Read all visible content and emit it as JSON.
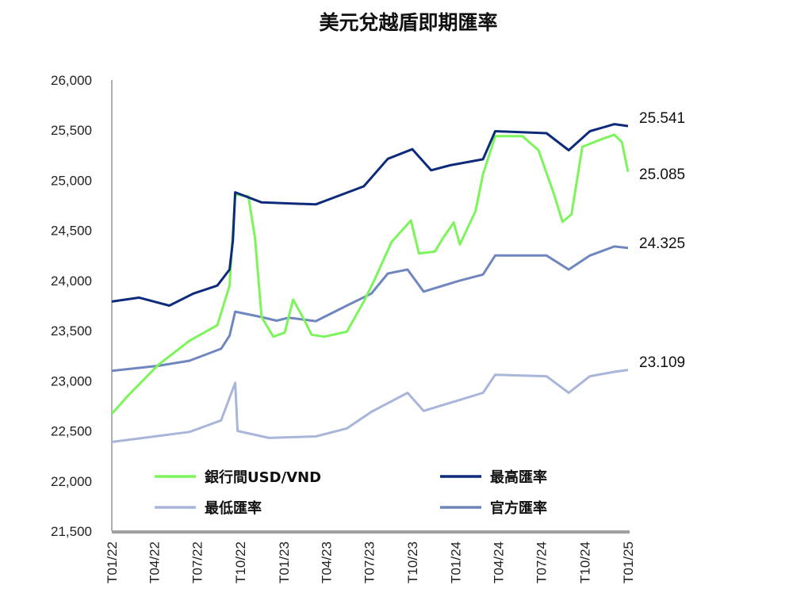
{
  "chart_data": {
    "type": "line",
    "title": "美元兌越盾即期匯率",
    "xlabel": "",
    "ylabel": "",
    "ylim": [
      21500,
      26000
    ],
    "yticks": [
      21500,
      22000,
      22500,
      23000,
      23500,
      24000,
      24500,
      25000,
      25500,
      26000
    ],
    "ytick_labels": [
      "21,500",
      "22,000",
      "22,500",
      "23,000",
      "23,500",
      "24,000",
      "24,500",
      "25,000",
      "25,500",
      "26,000"
    ],
    "xlim": [
      "2022-01-01",
      "2025-01-01"
    ],
    "xticks": [
      "2022-01-01",
      "2022-04-01",
      "2022-07-01",
      "2022-10-01",
      "2023-01-01",
      "2023-04-01",
      "2023-07-01",
      "2023-10-01",
      "2024-01-01",
      "2024-04-01",
      "2024-07-01",
      "2024-10-01",
      "2025-01-01"
    ],
    "xtick_labels": [
      "T01/22",
      "T04/22",
      "T07/22",
      "T10/22",
      "T01/23",
      "T04/23",
      "T07/23",
      "T10/23",
      "T01/24",
      "T04/24",
      "T07/24",
      "T10/24",
      "T01/25"
    ],
    "grid": false,
    "legend_placement": "bottom-inside",
    "series": [
      {
        "name": "銀行間USD/VND",
        "color": "#7CF55A",
        "end_label": "25.085",
        "points": [
          [
            "2022-01-01",
            22670
          ],
          [
            "2022-02-02",
            22840
          ],
          [
            "2022-04-10",
            23160
          ],
          [
            "2022-06-15",
            23400
          ],
          [
            "2022-08-13",
            23555
          ],
          [
            "2022-09-08",
            23950
          ],
          [
            "2022-09-20",
            24860
          ],
          [
            "2022-10-18",
            24840
          ],
          [
            "2022-11-01",
            24425
          ],
          [
            "2022-11-15",
            23635
          ],
          [
            "2022-12-10",
            23440
          ],
          [
            "2023-01-03",
            23480
          ],
          [
            "2023-01-21",
            23810
          ],
          [
            "2023-02-15",
            23595
          ],
          [
            "2023-03-01",
            23460
          ],
          [
            "2023-03-28",
            23440
          ],
          [
            "2023-05-15",
            23490
          ],
          [
            "2023-06-20",
            23790
          ],
          [
            "2023-07-15",
            24030
          ],
          [
            "2023-08-18",
            24385
          ],
          [
            "2023-09-28",
            24600
          ],
          [
            "2023-10-15",
            24270
          ],
          [
            "2023-11-18",
            24290
          ],
          [
            "2023-12-06",
            24430
          ],
          [
            "2023-12-28",
            24580
          ],
          [
            "2024-01-10",
            24360
          ],
          [
            "2024-02-12",
            24690
          ],
          [
            "2024-02-28",
            25060
          ],
          [
            "2024-03-25",
            25440
          ],
          [
            "2024-05-22",
            25440
          ],
          [
            "2024-06-25",
            25300
          ],
          [
            "2024-07-28",
            24860
          ],
          [
            "2024-08-15",
            24585
          ],
          [
            "2024-09-03",
            24660
          ],
          [
            "2024-09-26",
            25335
          ],
          [
            "2024-11-06",
            25410
          ],
          [
            "2024-12-03",
            25455
          ],
          [
            "2024-12-19",
            25380
          ],
          [
            "2025-01-01",
            25085
          ]
        ]
      },
      {
        "name": "最高匯率",
        "color": "#0E2A7A",
        "end_label": "25.541",
        "points": [
          [
            "2022-01-01",
            23790
          ],
          [
            "2022-02-28",
            23830
          ],
          [
            "2022-05-03",
            23750
          ],
          [
            "2022-06-23",
            23870
          ],
          [
            "2022-08-13",
            23950
          ],
          [
            "2022-09-08",
            24110
          ],
          [
            "2022-09-15",
            24400
          ],
          [
            "2022-09-20",
            24880
          ],
          [
            "2022-11-15",
            24780
          ],
          [
            "2023-03-10",
            24760
          ],
          [
            "2023-06-20",
            24940
          ],
          [
            "2023-08-10",
            25215
          ],
          [
            "2023-10-01",
            25310
          ],
          [
            "2023-11-10",
            25100
          ],
          [
            "2023-12-20",
            25150
          ],
          [
            "2024-02-28",
            25210
          ],
          [
            "2024-03-25",
            25490
          ],
          [
            "2024-07-12",
            25470
          ],
          [
            "2024-08-28",
            25300
          ],
          [
            "2024-10-12",
            25490
          ],
          [
            "2024-12-03",
            25560
          ],
          [
            "2025-01-01",
            25541
          ]
        ]
      },
      {
        "name": "最低匯率",
        "color": "#A9B6D9",
        "end_label": "23.109",
        "points": [
          [
            "2022-01-01",
            22390
          ],
          [
            "2022-04-10",
            22450
          ],
          [
            "2022-06-15",
            22490
          ],
          [
            "2022-08-21",
            22605
          ],
          [
            "2022-09-20",
            22980
          ],
          [
            "2022-09-25",
            22500
          ],
          [
            "2022-12-01",
            22430
          ],
          [
            "2023-03-10",
            22445
          ],
          [
            "2023-05-15",
            22525
          ],
          [
            "2023-07-06",
            22690
          ],
          [
            "2023-09-21",
            22880
          ],
          [
            "2023-10-25",
            22700
          ],
          [
            "2023-12-06",
            22760
          ],
          [
            "2024-02-28",
            22880
          ],
          [
            "2024-03-25",
            23060
          ],
          [
            "2024-07-12",
            23045
          ],
          [
            "2024-08-28",
            22880
          ],
          [
            "2024-10-12",
            23045
          ],
          [
            "2024-12-03",
            23090
          ],
          [
            "2025-01-01",
            23109
          ]
        ]
      },
      {
        "name": "官方匯率",
        "color": "#6F86BF",
        "end_label": "24.325",
        "points": [
          [
            "2022-01-01",
            23100
          ],
          [
            "2022-04-10",
            23150
          ],
          [
            "2022-06-15",
            23200
          ],
          [
            "2022-08-21",
            23320
          ],
          [
            "2022-09-08",
            23450
          ],
          [
            "2022-09-20",
            23690
          ],
          [
            "2022-11-15",
            23635
          ],
          [
            "2022-12-17",
            23600
          ],
          [
            "2023-01-12",
            23630
          ],
          [
            "2023-03-10",
            23595
          ],
          [
            "2023-05-15",
            23750
          ],
          [
            "2023-07-06",
            23870
          ],
          [
            "2023-08-10",
            24070
          ],
          [
            "2023-09-21",
            24110
          ],
          [
            "2023-10-25",
            23890
          ],
          [
            "2023-12-06",
            23950
          ],
          [
            "2024-01-10",
            24000
          ],
          [
            "2024-02-28",
            24060
          ],
          [
            "2024-03-25",
            24250
          ],
          [
            "2024-07-12",
            24250
          ],
          [
            "2024-08-28",
            24110
          ],
          [
            "2024-10-12",
            24250
          ],
          [
            "2024-12-03",
            24340
          ],
          [
            "2025-01-01",
            24325
          ]
        ]
      }
    ]
  }
}
